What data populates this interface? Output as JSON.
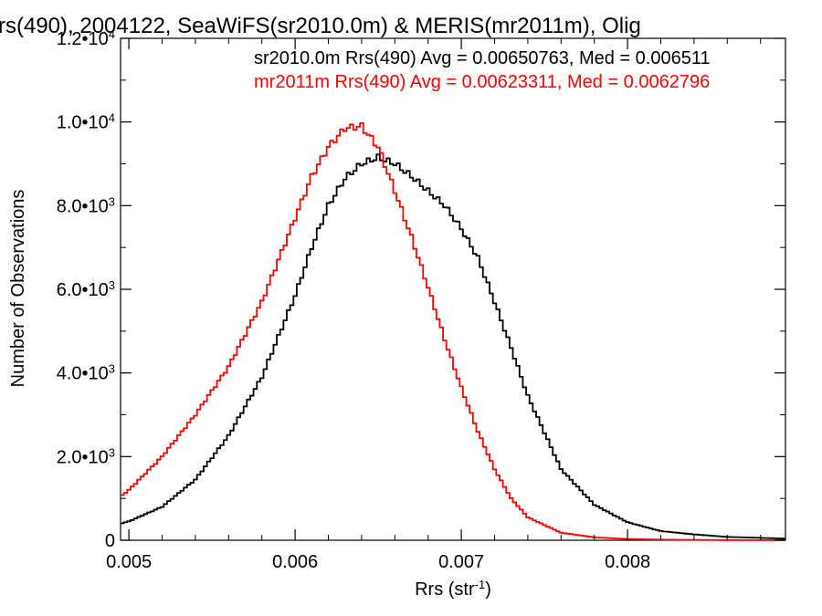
{
  "chart_data": {
    "type": "line",
    "title": "rs(490), 2004122, SeaWiFS(sr2010.0m) & MERIS(mr2011m), Olig",
    "xlabel_main": "Rrs (str",
    "xlabel_sup": "-1",
    "xlabel_tail": ")",
    "ylabel": "Number of Observations",
    "xlim": [
      0.00495,
      0.00895
    ],
    "ylim": [
      0,
      12000
    ],
    "x_ticks": [
      {
        "value": 0.005,
        "label": "0.005"
      },
      {
        "value": 0.006,
        "label": "0.006"
      },
      {
        "value": 0.007,
        "label": "0.007"
      },
      {
        "value": 0.008,
        "label": "0.008"
      }
    ],
    "y_ticks": [
      {
        "value": 0,
        "mant": "0",
        "exp": ""
      },
      {
        "value": 2000,
        "mant": "2.0•10",
        "exp": "3"
      },
      {
        "value": 4000,
        "mant": "4.0•10",
        "exp": "3"
      },
      {
        "value": 6000,
        "mant": "6.0•10",
        "exp": "3"
      },
      {
        "value": 8000,
        "mant": "8.0•10",
        "exp": "3"
      },
      {
        "value": 10000,
        "mant": "1.0•10",
        "exp": "4"
      },
      {
        "value": 12000,
        "mant": "1.2•10",
        "exp": "4"
      }
    ],
    "legend_position": "top-right",
    "series": [
      {
        "name": "sr2010.0m",
        "label": "sr2010.0m Rrs(490) Avg = 0.00650763, Med = 0.006511",
        "color": "#000000",
        "x": [
          0.00495,
          0.005,
          0.0052,
          0.0054,
          0.0056,
          0.0058,
          0.006,
          0.0061,
          0.0062,
          0.0063,
          0.0064,
          0.0065,
          0.0066,
          0.0067,
          0.0068,
          0.0069,
          0.007,
          0.0071,
          0.0072,
          0.0073,
          0.0074,
          0.0076,
          0.0078,
          0.008,
          0.0082,
          0.0084,
          0.0086,
          0.00895
        ],
        "y": [
          400,
          450,
          800,
          1450,
          2500,
          3900,
          5850,
          7000,
          8000,
          8650,
          9000,
          9150,
          9000,
          8700,
          8350,
          8000,
          7450,
          6750,
          5700,
          4600,
          3450,
          1700,
          850,
          430,
          220,
          140,
          80,
          40
        ]
      },
      {
        "name": "mr2011m",
        "label": "mr2011m Rrs(490) Avg = 0.00623311, Med = 0.0062796",
        "color": "#ff0000",
        "x": [
          0.00495,
          0.005,
          0.0052,
          0.0054,
          0.0056,
          0.0058,
          0.006,
          0.0061,
          0.0062,
          0.0063,
          0.0064,
          0.0065,
          0.0066,
          0.0067,
          0.0068,
          0.0069,
          0.007,
          0.0071,
          0.0072,
          0.0073,
          0.0074,
          0.0076,
          0.0078,
          0.008,
          0.0082,
          0.0084,
          0.0086,
          0.00895
        ],
        "y": [
          1050,
          1200,
          2000,
          3000,
          4150,
          5700,
          7700,
          8700,
          9400,
          9850,
          9900,
          9400,
          8350,
          7250,
          6050,
          4800,
          3650,
          2600,
          1700,
          1000,
          550,
          180,
          70,
          30,
          15,
          8,
          4,
          2
        ]
      }
    ]
  }
}
